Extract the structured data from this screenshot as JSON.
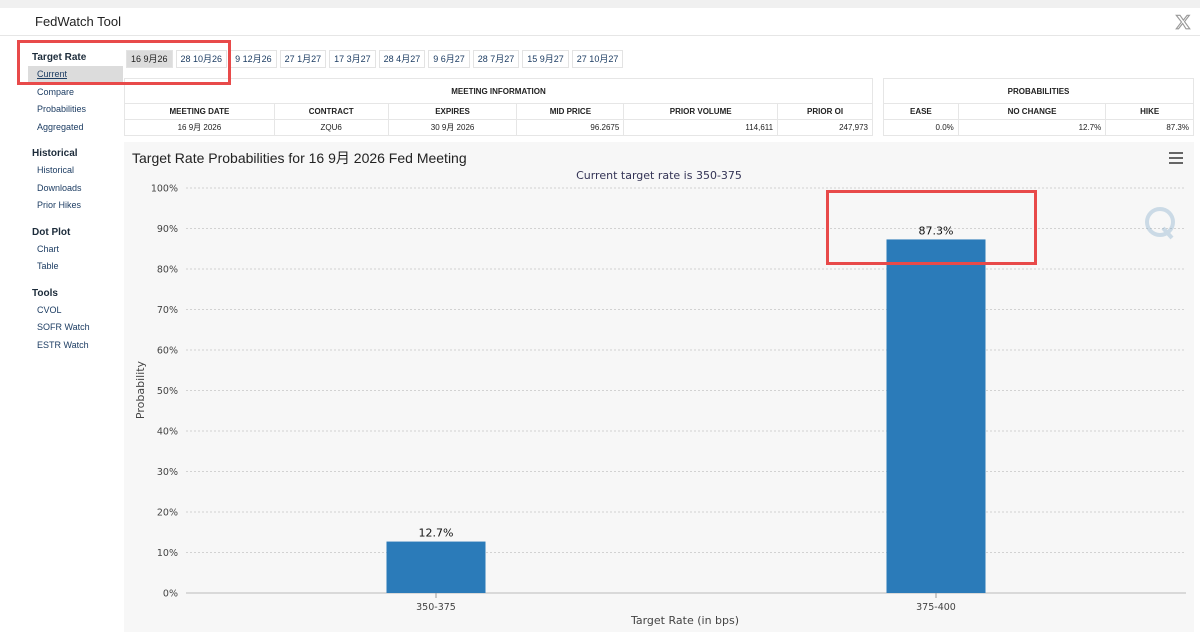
{
  "app": {
    "title": "FedWatch Tool",
    "x_icon": "x-logo-icon"
  },
  "sidebar": [
    {
      "heading": "Target Rate",
      "items": [
        {
          "label": "Current",
          "active": true
        },
        {
          "label": "Compare"
        },
        {
          "label": "Probabilities"
        },
        {
          "label": "Aggregated"
        }
      ]
    },
    {
      "heading": "Historical",
      "items": [
        {
          "label": "Historical"
        },
        {
          "label": "Downloads"
        },
        {
          "label": "Prior Hikes"
        }
      ]
    },
    {
      "heading": "Dot Plot",
      "items": [
        {
          "label": "Chart"
        },
        {
          "label": "Table"
        }
      ]
    },
    {
      "heading": "Tools",
      "items": [
        {
          "label": "CVOL"
        },
        {
          "label": "SOFR Watch"
        },
        {
          "label": "ESTR Watch"
        }
      ]
    }
  ],
  "tabs": [
    "16 9月26",
    "28 10月26",
    "9 12月26",
    "27 1月27",
    "17 3月27",
    "28 4月27",
    "9 6月27",
    "28 7月27",
    "15 9月27",
    "27 10月27"
  ],
  "active_tab": 0,
  "meeting_table": {
    "group_title": "MEETING INFORMATION",
    "headers": [
      "MEETING DATE",
      "CONTRACT",
      "EXPIRES",
      "MID PRICE",
      "PRIOR VOLUME",
      "PRIOR OI"
    ],
    "row": [
      "16 9月 2026",
      "ZQU6",
      "30 9月 2026",
      "96.2675",
      "114,611",
      "247,973"
    ]
  },
  "prob_table": {
    "group_title": "PROBABILITIES",
    "headers": [
      "EASE",
      "NO CHANGE",
      "HIKE"
    ],
    "row": [
      "0.0%",
      "12.7%",
      "87.3%"
    ]
  },
  "chart": {
    "title": "Target Rate Probabilities for 16 9月 2026 Fed Meeting",
    "subtitle": "Current target rate is 350-375",
    "menu_icon": "hamburger-menu-icon",
    "watermark_icon": "q-watermark-icon"
  },
  "chart_data": {
    "type": "bar",
    "categories": [
      "350-375",
      "375-400"
    ],
    "values": [
      12.7,
      87.3
    ],
    "data_labels": [
      "12.7%",
      "87.3%"
    ],
    "xlabel": "Target Rate (in bps)",
    "ylabel": "Probability",
    "ylim": [
      0,
      100
    ],
    "yticks": [
      "0%",
      "10%",
      "20%",
      "30%",
      "40%",
      "50%",
      "60%",
      "70%",
      "80%",
      "90%",
      "100%"
    ],
    "grid": true,
    "bar_color": "#2b7bb9"
  },
  "colors": {
    "highlight": "#e84a4a",
    "link": "#1d3d63",
    "bar": "#2b7bb9"
  }
}
